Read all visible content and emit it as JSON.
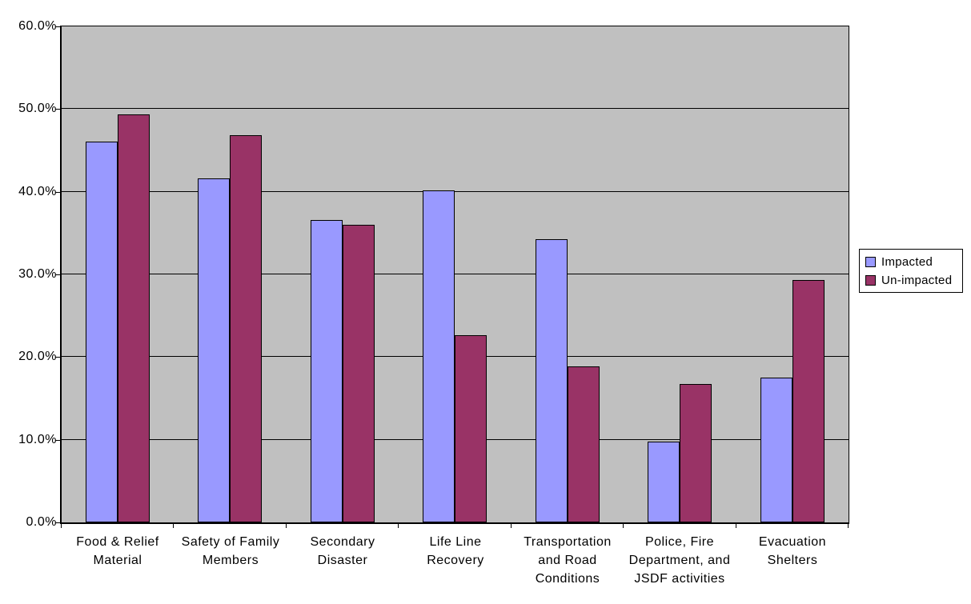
{
  "chart_data": {
    "type": "bar",
    "title": "",
    "xlabel": "",
    "ylabel": "",
    "categories": [
      "Food & Relief Material",
      "Safety of Family Members",
      "Secondary Disaster",
      "Life Line Recovery",
      "Transportation and Road Conditions",
      "Police, Fire Department, and JSDF activities",
      "Evacuation Shelters"
    ],
    "category_label_lines": [
      [
        "Food & Relief",
        "Material"
      ],
      [
        "Safety of Family",
        "Members"
      ],
      [
        "Secondary",
        "Disaster"
      ],
      [
        "Life Line",
        "Recovery"
      ],
      [
        "Transportation",
        "and Road",
        "Conditions"
      ],
      [
        "Police, Fire",
        "Department, and",
        "JSDF activities"
      ],
      [
        "Evacuation",
        "Shelters"
      ]
    ],
    "series": [
      {
        "name": "Impacted",
        "color": "#9999ff",
        "values": [
          46.1,
          41.6,
          36.6,
          40.2,
          34.3,
          9.8,
          17.5
        ]
      },
      {
        "name": "Un-impacted",
        "color": "#993366",
        "values": [
          49.4,
          46.8,
          36.0,
          22.6,
          18.9,
          16.7,
          29.3
        ]
      }
    ],
    "ylim": [
      0,
      60
    ],
    "ytick_step": 10,
    "ytick_labels": [
      "0.0%",
      "10.0%",
      "20.0%",
      "30.0%",
      "40.0%",
      "50.0%",
      "60.0%"
    ],
    "grid": true,
    "legend": {
      "position": "right",
      "items": [
        "Impacted",
        "Un-impacted"
      ]
    },
    "colors": {
      "page_background": "#ffffff",
      "plot_background": "#c0c0c0",
      "axis_and_grid": "#000000",
      "bar_border": "#000000",
      "text": "#000000"
    }
  }
}
